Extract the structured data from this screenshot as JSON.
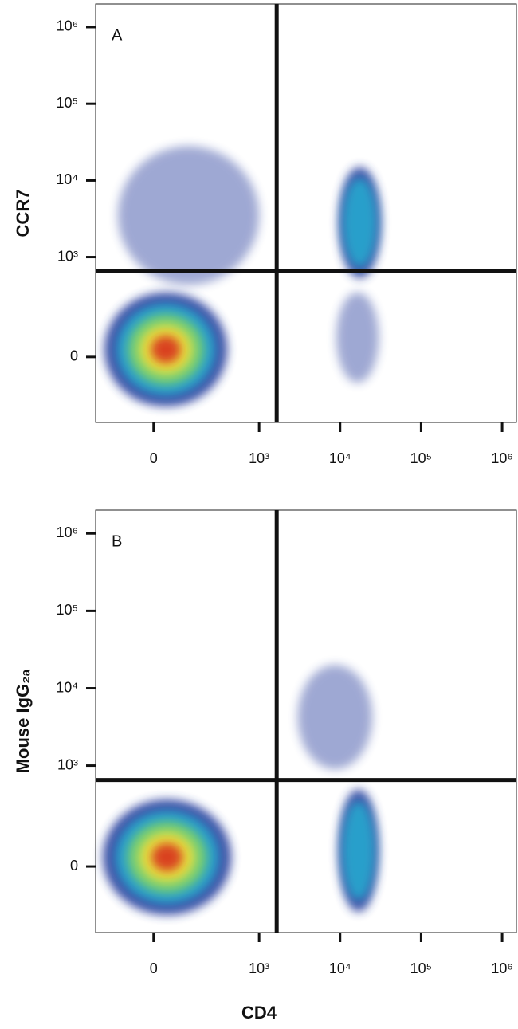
{
  "chart_data": [
    {
      "type": "density",
      "title": "A",
      "ylabel": "CCR7",
      "xscale": "arcsinh",
      "yscale": "arcsinh",
      "xlim": [
        -250,
        1500000
      ],
      "ylim": [
        -350,
        2000000
      ],
      "xticks": [
        0,
        {
          "value": 1000,
          "label": "10³"
        },
        {
          "value": 10000,
          "label": "10⁴"
        },
        {
          "value": 100000,
          "label": "10⁵"
        },
        {
          "value": 1000000,
          "label": "10⁶"
        }
      ],
      "yticks": [
        0,
        {
          "value": 1000,
          "label": "10³"
        },
        {
          "value": 10000,
          "label": "10⁴"
        },
        {
          "value": 100000,
          "label": "10⁵"
        },
        {
          "value": 1000000,
          "label": "10⁶"
        }
      ],
      "colors": [
        "#2b3f9e",
        "#28a8cf",
        "#7ed36b",
        "#f3e03a",
        "#d8301f"
      ],
      "gate": {
        "x": 1650,
        "y": 650
      },
      "populations": [
        {
          "xrange": [
            -190,
            400
          ],
          "yrange": [
            -210,
            340
          ],
          "rings": 5
        },
        {
          "xrange": [
            -120,
            1000
          ],
          "yrange": [
            430,
            28000
          ],
          "rings": 1
        },
        {
          "xrange": [
            9600,
            32000
          ],
          "yrange": [
            530,
            15000
          ],
          "rings": 2
        },
        {
          "xrange": [
            9000,
            30000
          ],
          "yrange": [
            -85,
            340
          ],
          "rings": 1
        }
      ]
    },
    {
      "type": "density",
      "title": "B",
      "ylabel": "Mouse IgG₂ₐ",
      "xlabel": "CD4",
      "xscale": "arcsinh",
      "yscale": "arcsinh",
      "xlim": [
        -250,
        1500000
      ],
      "ylim": [
        -350,
        2000000
      ],
      "xticks": [
        0,
        {
          "value": 1000,
          "label": "10³"
        },
        {
          "value": 10000,
          "label": "10⁴"
        },
        {
          "value": 100000,
          "label": "10⁵"
        },
        {
          "value": 1000000,
          "label": "10⁶"
        }
      ],
      "yticks": [
        0,
        {
          "value": 1000,
          "label": "10³"
        },
        {
          "value": 10000,
          "label": "10⁴"
        },
        {
          "value": 100000,
          "label": "10⁵"
        },
        {
          "value": 1000000,
          "label": "10⁶"
        }
      ],
      "colors": [
        "#2b3f9e",
        "#28a8cf",
        "#7ed36b",
        "#f3e03a",
        "#d8301f"
      ],
      "gate": {
        "x": 1650,
        "y": 650
      },
      "populations": [
        {
          "xrange": [
            -200,
            450
          ],
          "yrange": [
            -200,
            360
          ],
          "rings": 5
        },
        {
          "xrange": [
            9500,
            30000
          ],
          "yrange": [
            -180,
            490
          ],
          "rings": 2
        },
        {
          "xrange": [
            3000,
            25000
          ],
          "yrange": [
            900,
            20000
          ],
          "rings": 1
        }
      ]
    }
  ]
}
